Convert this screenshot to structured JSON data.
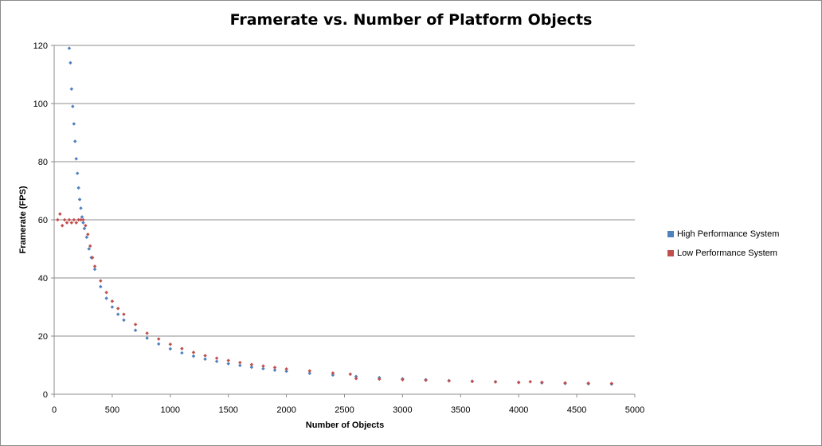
{
  "chart_data": {
    "type": "scatter",
    "title": "Framerate vs. Number of Platform Objects",
    "xlabel": "Number of Objects",
    "ylabel": "Framerate (FPS)",
    "xlim": [
      0,
      5000
    ],
    "ylim": [
      0,
      120
    ],
    "xticks": [
      0,
      500,
      1000,
      1500,
      2000,
      2500,
      3000,
      3500,
      4000,
      4500,
      5000
    ],
    "yticks": [
      0,
      20,
      40,
      60,
      80,
      100,
      120
    ],
    "grid": "horizontal",
    "legend_position": "right",
    "series": [
      {
        "name": "High Performance System",
        "color": "#4F81BD",
        "points": [
          [
            130,
            119
          ],
          [
            140,
            114
          ],
          [
            150,
            105
          ],
          [
            160,
            99
          ],
          [
            170,
            93
          ],
          [
            180,
            87
          ],
          [
            190,
            81
          ],
          [
            200,
            76
          ],
          [
            210,
            71
          ],
          [
            220,
            67
          ],
          [
            230,
            64
          ],
          [
            240,
            61
          ],
          [
            250,
            59
          ],
          [
            260,
            57
          ],
          [
            280,
            54
          ],
          [
            300,
            50
          ],
          [
            320,
            47
          ],
          [
            350,
            43
          ],
          [
            400,
            37
          ],
          [
            450,
            33
          ],
          [
            500,
            30
          ],
          [
            550,
            27.5
          ],
          [
            600,
            25.5
          ],
          [
            700,
            22
          ],
          [
            800,
            19.3
          ],
          [
            900,
            17.3
          ],
          [
            1000,
            15.6
          ],
          [
            1100,
            14.2
          ],
          [
            1200,
            13.1
          ],
          [
            1300,
            12.1
          ],
          [
            1400,
            11.3
          ],
          [
            1500,
            10.5
          ],
          [
            1600,
            9.9
          ],
          [
            1700,
            9.3
          ],
          [
            1800,
            8.8
          ],
          [
            1900,
            8.3
          ],
          [
            2000,
            7.9
          ],
          [
            2200,
            7.2
          ],
          [
            2400,
            6.6
          ],
          [
            2600,
            6.1
          ],
          [
            2800,
            5.7
          ],
          [
            3000,
            5.3
          ],
          [
            3200,
            5.0
          ],
          [
            3400,
            4.7
          ],
          [
            3600,
            4.5
          ],
          [
            3800,
            4.3
          ],
          [
            4000,
            4.1
          ],
          [
            4200,
            3.9
          ],
          [
            4400,
            3.7
          ],
          [
            4600,
            3.6
          ],
          [
            4800,
            3.5
          ]
        ]
      },
      {
        "name": "Low Performance System",
        "color": "#C0504D",
        "points": [
          [
            30,
            60
          ],
          [
            50,
            62
          ],
          [
            70,
            58
          ],
          [
            90,
            60
          ],
          [
            110,
            59
          ],
          [
            130,
            60
          ],
          [
            150,
            59
          ],
          [
            170,
            60
          ],
          [
            190,
            59
          ],
          [
            210,
            60
          ],
          [
            230,
            60
          ],
          [
            250,
            60
          ],
          [
            270,
            58
          ],
          [
            290,
            55
          ],
          [
            310,
            51
          ],
          [
            330,
            47
          ],
          [
            350,
            44
          ],
          [
            400,
            39
          ],
          [
            450,
            35
          ],
          [
            500,
            32
          ],
          [
            550,
            29.5
          ],
          [
            600,
            27.5
          ],
          [
            700,
            24
          ],
          [
            800,
            21
          ],
          [
            900,
            19
          ],
          [
            1000,
            17.2
          ],
          [
            1100,
            15.7
          ],
          [
            1200,
            14.4
          ],
          [
            1300,
            13.3
          ],
          [
            1400,
            12.4
          ],
          [
            1500,
            11.6
          ],
          [
            1600,
            10.9
          ],
          [
            1700,
            10.2
          ],
          [
            1800,
            9.7
          ],
          [
            1900,
            9.2
          ],
          [
            2000,
            8.7
          ],
          [
            2200,
            8.0
          ],
          [
            2400,
            7.3
          ],
          [
            2550,
            6.9
          ],
          [
            2600,
            5.4
          ],
          [
            2800,
            5.2
          ],
          [
            3000,
            5.0
          ],
          [
            3200,
            4.8
          ],
          [
            3400,
            4.6
          ],
          [
            3600,
            4.4
          ],
          [
            3800,
            4.2
          ],
          [
            4000,
            4.0
          ],
          [
            4100,
            4.3
          ],
          [
            4200,
            4.1
          ],
          [
            4400,
            3.9
          ],
          [
            4600,
            3.8
          ],
          [
            4800,
            3.7
          ]
        ]
      }
    ]
  }
}
